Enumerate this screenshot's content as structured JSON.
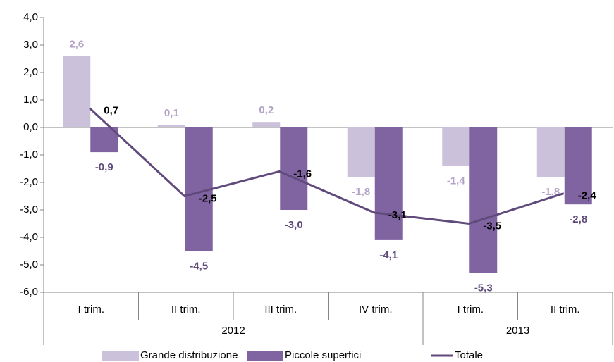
{
  "chart_data": {
    "type": "bar_line",
    "categories": [
      "I trim.",
      "II trim.",
      "III trim.",
      "IV trim.",
      "I trim.",
      "II trim."
    ],
    "year_groups": [
      {
        "label": "2012",
        "count": 4
      },
      {
        "label": "2013",
        "count": 2
      }
    ],
    "series": [
      {
        "name": "Grande distribuzione",
        "kind": "bar",
        "color": "#ccc1da",
        "label_color": "#b3a2c7",
        "values": [
          2.6,
          0.1,
          0.2,
          -1.8,
          -1.4,
          -1.8
        ],
        "value_labels": [
          "2,6",
          "0,1",
          "0,2",
          "-1,8",
          "-1,4",
          "-1,8"
        ]
      },
      {
        "name": "Piccole superfici",
        "kind": "bar",
        "color": "#8064a2",
        "label_color": "#604a7b",
        "values": [
          -0.9,
          -4.5,
          -3.0,
          -4.1,
          -5.3,
          -2.8
        ],
        "value_labels": [
          "-0,9",
          "-4,5",
          "-3,0",
          "-4,1",
          "-5,3",
          "-2,8"
        ]
      },
      {
        "name": "Totale",
        "kind": "line",
        "color": "#604a7b",
        "label_color": "#000000",
        "values": [
          0.7,
          -2.5,
          -1.6,
          -3.1,
          -3.5,
          -2.4
        ],
        "value_labels": [
          "0,7",
          "-2,5",
          "-1,6",
          "-3,1",
          "-3,5",
          "-2,4"
        ]
      }
    ],
    "ylim": [
      -6,
      4
    ],
    "yticks": [
      {
        "value": -6,
        "label": "-6,0"
      },
      {
        "value": -5,
        "label": "-5,0"
      },
      {
        "value": -4,
        "label": "-4,0"
      },
      {
        "value": -3,
        "label": "-3,0"
      },
      {
        "value": -2,
        "label": "-2,0"
      },
      {
        "value": -1,
        "label": "-1,0"
      },
      {
        "value": 0,
        "label": "0,0"
      },
      {
        "value": 1,
        "label": "1,0"
      },
      {
        "value": 2,
        "label": "2,0"
      },
      {
        "value": 3,
        "label": "3,0"
      },
      {
        "value": 4,
        "label": "4,0"
      }
    ],
    "grid": false,
    "legend": "bottom"
  }
}
